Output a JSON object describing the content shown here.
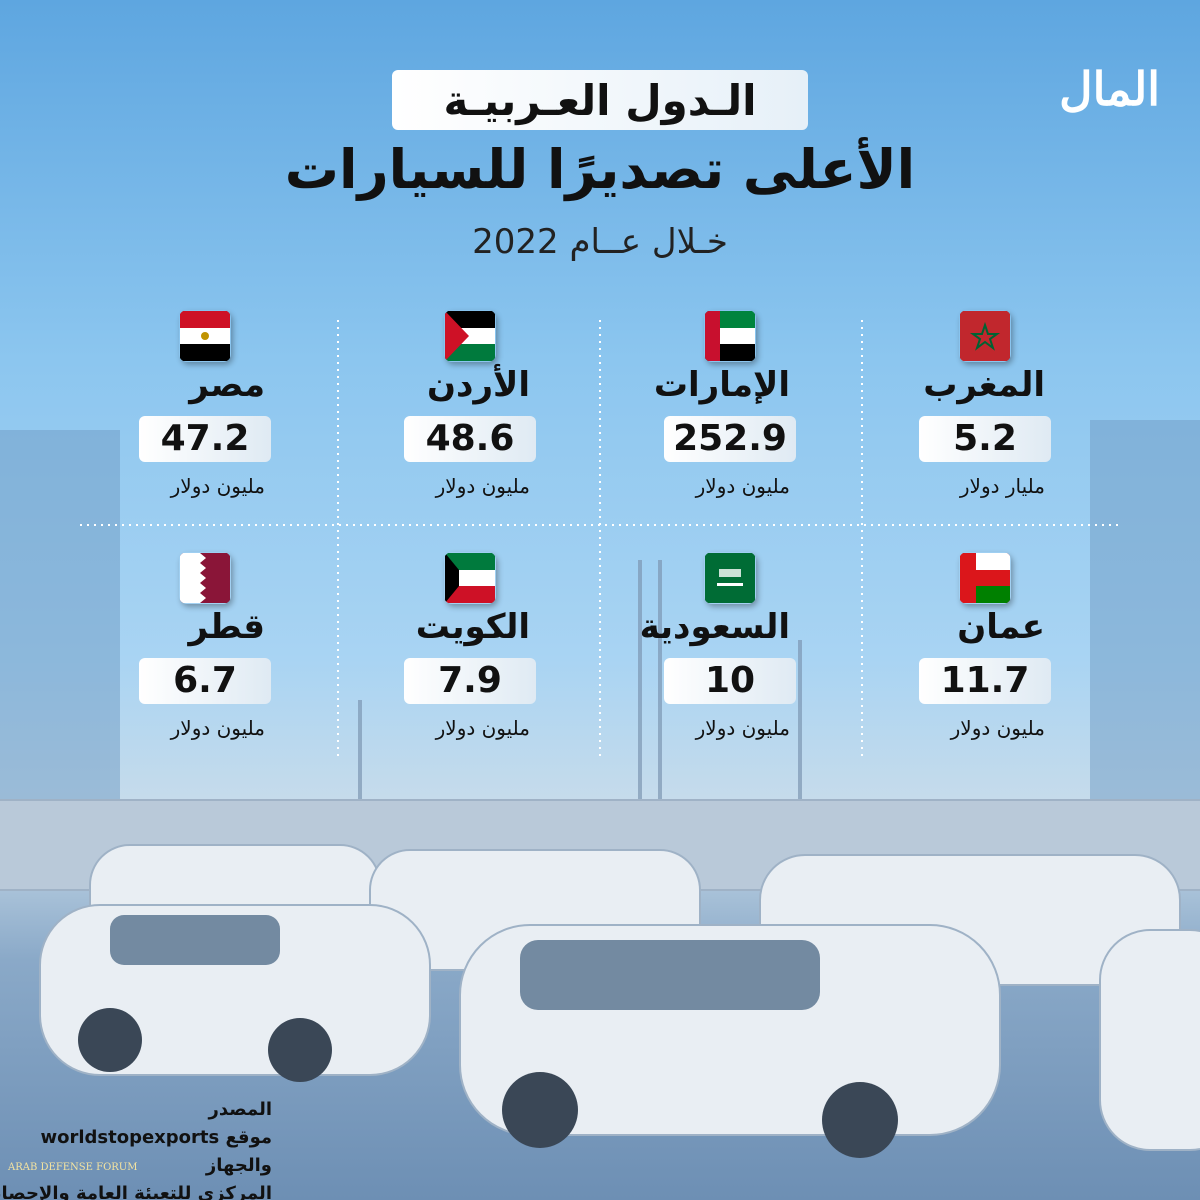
{
  "logo": "المال",
  "header": {
    "kicker": "الـدول العـربيـة",
    "title": "الأعلى تصديرًا للسيارات",
    "subtitle": "خـلال عــام 2022"
  },
  "countries": [
    {
      "name": "المغرب",
      "value": 5.2,
      "unit": "مليار دولار"
    },
    {
      "name": "الإمارات",
      "value": 252.9,
      "unit": "مليون دولار"
    },
    {
      "name": "الأردن",
      "value": 48.6,
      "unit": "مليون دولار"
    },
    {
      "name": "مصر",
      "value": 47.2,
      "unit": "مليون دولار"
    },
    {
      "name": "عمان",
      "value": 11.7,
      "unit": "مليون دولار"
    },
    {
      "name": "السعودية",
      "value": 10,
      "unit": "مليون دولار"
    },
    {
      "name": "الكويت",
      "value": 7.9,
      "unit": "مليون دولار"
    },
    {
      "name": "قطر",
      "value": 6.7,
      "unit": "مليون دولار"
    }
  ],
  "source": {
    "label": "المصدر",
    "lines": [
      "موقع worldstopexports والجهاز",
      "المركزي للتعبئة العامة والإحصاء"
    ]
  },
  "watermark": "ARAB DEFENSE FORUM"
}
